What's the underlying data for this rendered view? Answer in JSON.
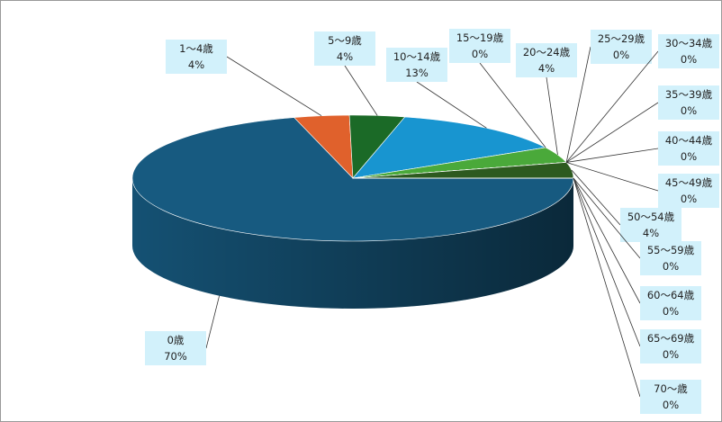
{
  "chart_data": {
    "type": "pie",
    "categories": [
      "0歳",
      "1～4歳",
      "5～9歳",
      "10～14歳",
      "15～19歳",
      "20～24歳",
      "25～29歳",
      "30～34歳",
      "35～39歳",
      "40～44歳",
      "45～49歳",
      "50～54歳",
      "55～59歳",
      "60～64歳",
      "65～69歳",
      "70～歳"
    ],
    "values": [
      70,
      4,
      4,
      13,
      0,
      4,
      0,
      0,
      0,
      0,
      0,
      4,
      0,
      0,
      0,
      0
    ],
    "value_labels": [
      "70%",
      "4%",
      "4%",
      "13%",
      "0%",
      "4%",
      "0%",
      "0%",
      "0%",
      "0%",
      "0%",
      "4%",
      "0%",
      "0%",
      "0%",
      "0%"
    ],
    "colors": [
      "#175a80",
      "#e0612c",
      "#1b6a27",
      "#1895d0",
      "#3d8fbf",
      "#4aa93a",
      "#888888",
      "#888888",
      "#888888",
      "#888888",
      "#888888",
      "#2d5a1f",
      "#888888",
      "#888888",
      "#888888",
      "#888888"
    ]
  }
}
